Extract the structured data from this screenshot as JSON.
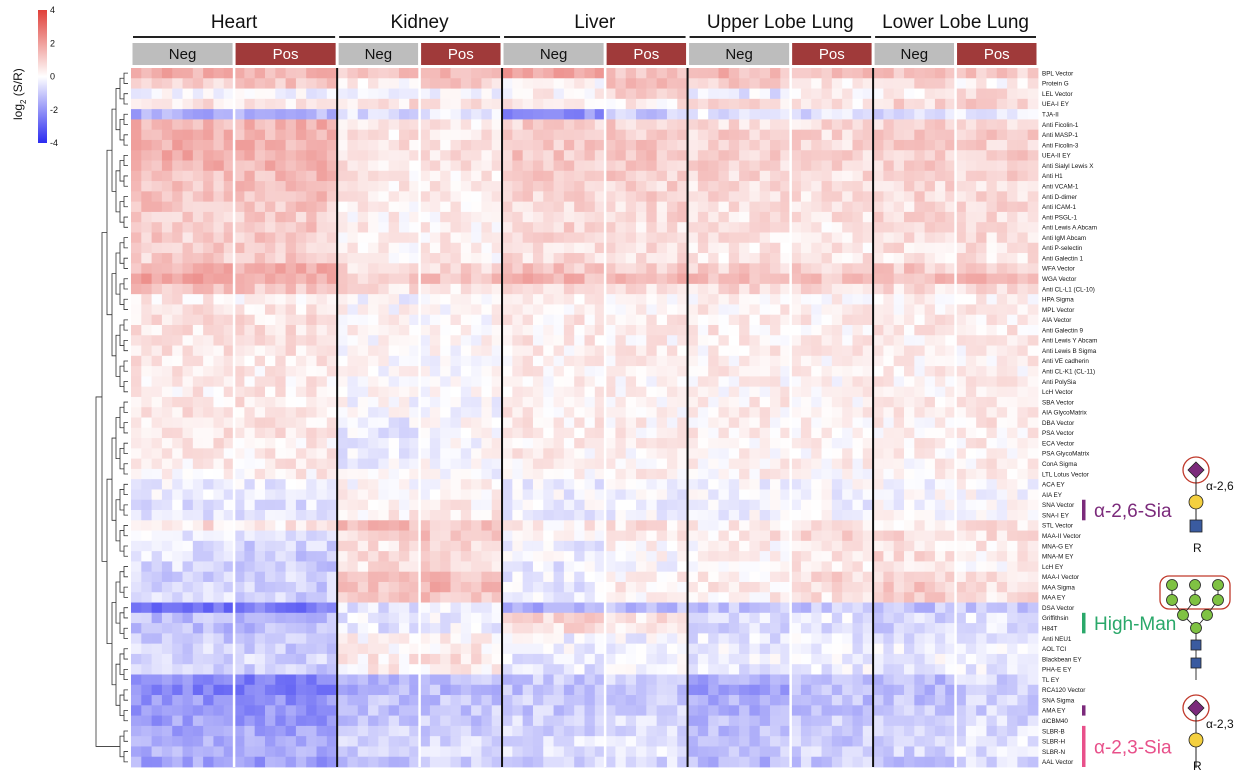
{
  "chart_data": {
    "type": "heatmap",
    "colorbar": {
      "label_main": "log",
      "label_sub": "2",
      "label_rest": " (S/R)",
      "ticks": [
        4,
        2,
        0,
        -2,
        -4
      ],
      "range": [
        -4,
        4
      ],
      "colors": {
        "low": "#2b2bf0",
        "mid": "#ffffff",
        "high": "#e0403a"
      }
    },
    "tissues": [
      "Heart",
      "Kidney",
      "Liver",
      "Upper Lobe Lung",
      "Lower Lobe Lung"
    ],
    "groups": [
      {
        "tissue": "Heart",
        "label": "Neg",
        "samples": 10
      },
      {
        "tissue": "Heart",
        "label": "Pos",
        "samples": 10
      },
      {
        "tissue": "Kidney",
        "label": "Neg",
        "samples": 8
      },
      {
        "tissue": "Kidney",
        "label": "Pos",
        "samples": 8
      },
      {
        "tissue": "Liver",
        "label": "Neg",
        "samples": 10
      },
      {
        "tissue": "Liver",
        "label": "Pos",
        "samples": 8
      },
      {
        "tissue": "Upper Lobe Lung",
        "label": "Neg",
        "samples": 10
      },
      {
        "tissue": "Upper Lobe Lung",
        "label": "Pos",
        "samples": 8
      },
      {
        "tissue": "Lower Lobe Lung",
        "label": "Neg",
        "samples": 8
      },
      {
        "tissue": "Lower Lobe Lung",
        "label": "Pos",
        "samples": 8
      }
    ],
    "group_colors": {
      "Neg": "#bdbdbd",
      "Pos": "#a03a3a"
    },
    "rows": [
      {
        "label": "BPL Vector",
        "v": [
          1.6,
          1.5,
          1.2,
          1.5,
          1.8,
          1.3,
          1.5,
          1.3,
          1.4,
          1.1
        ]
      },
      {
        "label": "Protein G",
        "v": [
          0.8,
          1.2,
          0.3,
          1.0,
          0.1,
          1.5,
          1.0,
          0.5,
          0.9,
          0.2
        ]
      },
      {
        "label": "LEL Vector",
        "v": [
          -0.2,
          -0.1,
          -0.3,
          -0.3,
          0.2,
          0.8,
          -0.4,
          0.2,
          0.2,
          0.8
        ]
      },
      {
        "label": "UEA-I EY",
        "v": [
          0.6,
          0.5,
          0.6,
          0.5,
          0.3,
          0.4,
          0.6,
          0.5,
          0.8,
          0.9
        ]
      },
      {
        "label": "TJA-II",
        "v": [
          -1.5,
          -1.3,
          -0.6,
          -0.4,
          -2.0,
          -1.0,
          -0.5,
          -0.6,
          -0.7,
          -0.6
        ]
      },
      {
        "label": "Anti Ficolin-1",
        "v": [
          1.5,
          1.6,
          0.5,
          0.4,
          1.0,
          1.0,
          0.8,
          0.7,
          0.9,
          0.9
        ]
      },
      {
        "label": "Anti MASP-1",
        "v": [
          1.6,
          1.5,
          0.5,
          0.5,
          1.1,
          1.0,
          0.9,
          0.8,
          1.0,
          1.0
        ]
      },
      {
        "label": "Anti Ficolin-3",
        "v": [
          1.6,
          1.6,
          0.6,
          0.5,
          1.1,
          1.1,
          0.9,
          0.8,
          1.0,
          1.0
        ]
      },
      {
        "label": "UEA-II EY",
        "v": [
          1.8,
          1.7,
          0.6,
          0.6,
          1.2,
          1.2,
          1.0,
          0.9,
          1.1,
          1.1
        ]
      },
      {
        "label": "Anti Sialyl Lewis X",
        "v": [
          1.6,
          1.6,
          0.5,
          0.5,
          1.1,
          1.0,
          0.9,
          0.8,
          1.0,
          1.0
        ]
      },
      {
        "label": "Anti H1",
        "v": [
          1.3,
          1.4,
          0.4,
          0.4,
          1.0,
          1.0,
          0.8,
          0.7,
          0.9,
          0.9
        ]
      },
      {
        "label": "Anti VCAM-1",
        "v": [
          1.3,
          1.3,
          0.4,
          0.4,
          0.9,
          0.9,
          0.7,
          0.7,
          0.8,
          0.8
        ]
      },
      {
        "label": "Anti D-dimer",
        "v": [
          1.2,
          1.3,
          0.3,
          0.4,
          0.9,
          0.9,
          0.7,
          0.6,
          0.8,
          0.8
        ]
      },
      {
        "label": "Anti ICAM-1",
        "v": [
          1.2,
          1.2,
          0.3,
          0.3,
          0.8,
          0.8,
          0.6,
          0.6,
          0.7,
          0.8
        ]
      },
      {
        "label": "Anti PSGL-1",
        "v": [
          1.1,
          1.1,
          0.3,
          0.3,
          0.8,
          0.8,
          0.6,
          0.6,
          0.7,
          0.7
        ]
      },
      {
        "label": "Anti Lewis A Abcam",
        "v": [
          1.1,
          1.1,
          0.3,
          0.3,
          0.8,
          0.7,
          0.6,
          0.5,
          0.7,
          0.7
        ]
      },
      {
        "label": "Anti IgM Abcam",
        "v": [
          1.0,
          1.1,
          0.3,
          0.3,
          0.7,
          0.7,
          0.6,
          0.5,
          0.6,
          0.7
        ]
      },
      {
        "label": "Anti P-selectin",
        "v": [
          1.0,
          1.0,
          0.3,
          0.3,
          0.7,
          0.7,
          0.5,
          0.5,
          0.6,
          0.6
        ]
      },
      {
        "label": "Anti Galectin 1",
        "v": [
          1.0,
          1.0,
          0.3,
          0.3,
          0.7,
          0.7,
          0.5,
          0.5,
          0.6,
          0.6
        ]
      },
      {
        "label": "WFA Vector",
        "v": [
          1.6,
          1.6,
          0.7,
          0.8,
          1.2,
          1.1,
          1.0,
          0.9,
          1.1,
          1.1
        ]
      },
      {
        "label": "WGA Vector",
        "v": [
          1.9,
          1.9,
          1.1,
          1.2,
          1.5,
          1.4,
          1.3,
          1.3,
          1.4,
          1.5
        ]
      },
      {
        "label": "Anti CL-L1 (CL-10)",
        "v": [
          1.2,
          1.2,
          0.7,
          0.6,
          0.8,
          0.7,
          0.7,
          0.6,
          0.7,
          0.8
        ]
      },
      {
        "label": "HPA Sigma",
        "v": [
          0.4,
          0.3,
          -0.1,
          -0.1,
          0.3,
          0.2,
          0.3,
          0.2,
          0.3,
          0.3
        ]
      },
      {
        "label": "MPL Vector",
        "v": [
          0.5,
          0.5,
          0.1,
          0.0,
          0.3,
          0.3,
          0.3,
          0.3,
          0.3,
          0.3
        ]
      },
      {
        "label": "AIA Vector",
        "v": [
          0.6,
          0.6,
          0.2,
          0.1,
          0.4,
          0.4,
          0.4,
          0.3,
          0.4,
          0.4
        ]
      },
      {
        "label": "Anti Galectin 9",
        "v": [
          0.6,
          0.6,
          0.2,
          0.1,
          0.4,
          0.4,
          0.4,
          0.3,
          0.4,
          0.4
        ]
      },
      {
        "label": "Anti Lewis Y Abcam",
        "v": [
          0.5,
          0.5,
          0.1,
          0.1,
          0.4,
          0.3,
          0.3,
          0.3,
          0.3,
          0.4
        ]
      },
      {
        "label": "Anti Lewis B Sigma",
        "v": [
          0.5,
          0.5,
          0.1,
          0.0,
          0.3,
          0.3,
          0.3,
          0.3,
          0.3,
          0.3
        ]
      },
      {
        "label": "Anti VE cadherin",
        "v": [
          0.5,
          0.4,
          0.1,
          0.0,
          0.3,
          0.3,
          0.3,
          0.2,
          0.3,
          0.3
        ]
      },
      {
        "label": "Anti CL-K1 (CL-11)",
        "v": [
          0.4,
          0.4,
          0.0,
          0.0,
          0.3,
          0.3,
          0.3,
          0.2,
          0.3,
          0.3
        ]
      },
      {
        "label": "Anti PolySia",
        "v": [
          0.4,
          0.4,
          0.0,
          0.0,
          0.3,
          0.2,
          0.2,
          0.2,
          0.3,
          0.3
        ]
      },
      {
        "label": "LcH Vector",
        "v": [
          0.4,
          0.4,
          0.0,
          -0.1,
          0.3,
          0.2,
          0.2,
          0.2,
          0.2,
          0.3
        ]
      },
      {
        "label": "SBA Vector",
        "v": [
          0.5,
          0.5,
          0.0,
          0.0,
          0.3,
          0.3,
          0.3,
          0.2,
          0.3,
          0.3
        ]
      },
      {
        "label": "AIA GlycoMatrix",
        "v": [
          0.5,
          0.5,
          0.0,
          0.0,
          0.3,
          0.3,
          0.3,
          0.2,
          0.3,
          0.3
        ]
      },
      {
        "label": "DBA Vector",
        "v": [
          0.6,
          0.5,
          -0.3,
          0.0,
          0.4,
          0.3,
          0.3,
          0.3,
          0.3,
          0.4
        ]
      },
      {
        "label": "PSA Vector",
        "v": [
          0.5,
          0.5,
          -0.4,
          0.0,
          0.3,
          0.3,
          0.3,
          0.2,
          0.3,
          0.3
        ]
      },
      {
        "label": "ECA Vector",
        "v": [
          0.5,
          0.4,
          -0.4,
          0.0,
          0.3,
          0.3,
          0.3,
          0.2,
          0.3,
          0.3
        ]
      },
      {
        "label": "PSA GlycoMatrix",
        "v": [
          0.4,
          0.4,
          -0.4,
          0.0,
          0.3,
          0.2,
          0.2,
          0.2,
          0.2,
          0.3
        ]
      },
      {
        "label": "ConA Sigma",
        "v": [
          0.4,
          0.4,
          -0.3,
          0.0,
          0.2,
          0.2,
          0.2,
          0.2,
          0.2,
          0.3
        ]
      },
      {
        "label": "LTL Lotus Vector",
        "v": [
          0.3,
          0.3,
          -0.2,
          0.0,
          0.2,
          0.2,
          0.2,
          0.2,
          0.2,
          0.2
        ]
      },
      {
        "label": "ACA EY",
        "v": [
          -0.3,
          -0.4,
          0.1,
          0.2,
          -0.3,
          -0.3,
          -0.2,
          -0.1,
          -0.1,
          0.0
        ]
      },
      {
        "label": "AIA EY",
        "v": [
          -0.4,
          -0.5,
          0.2,
          0.2,
          -0.3,
          -0.3,
          -0.2,
          -0.2,
          -0.1,
          0.0
        ]
      },
      {
        "label": "SNA Vector",
        "v": [
          -0.5,
          -0.6,
          0.3,
          0.3,
          -0.3,
          -0.2,
          -0.3,
          -0.2,
          -0.1,
          0.1
        ]
      },
      {
        "label": "SNA-I EY",
        "v": [
          -0.5,
          -0.5,
          0.4,
          0.4,
          -0.3,
          -0.2,
          -0.2,
          -0.1,
          0.0,
          0.1
        ]
      },
      {
        "label": "STL Vector",
        "v": [
          0.6,
          0.5,
          1.3,
          1.1,
          0.4,
          0.6,
          0.3,
          0.4,
          0.5,
          0.6
        ]
      },
      {
        "label": "MAA-II Vector",
        "v": [
          -0.3,
          -0.6,
          0.8,
          1.2,
          -0.1,
          0.6,
          0.5,
          1.0,
          0.7,
          0.6
        ]
      },
      {
        "label": "MNA-G EY",
        "v": [
          -0.5,
          -0.8,
          0.6,
          0.9,
          -0.3,
          0.2,
          0.2,
          0.6,
          0.5,
          0.4
        ]
      },
      {
        "label": "MNA-M EY",
        "v": [
          -0.6,
          -0.9,
          0.7,
          0.8,
          -0.3,
          0.1,
          0.2,
          0.5,
          0.7,
          0.4
        ]
      },
      {
        "label": "LcH EY",
        "v": [
          -0.7,
          -1.0,
          0.6,
          0.8,
          -0.4,
          0.0,
          0.1,
          0.4,
          0.6,
          0.3
        ]
      },
      {
        "label": "MAA-I Vector",
        "v": [
          -0.8,
          -0.8,
          1.3,
          1.4,
          -0.4,
          0.3,
          0.4,
          0.8,
          1.0,
          0.6
        ]
      },
      {
        "label": "MAA Sigma",
        "v": [
          -0.7,
          -0.9,
          1.3,
          1.5,
          -0.4,
          0.3,
          0.4,
          0.8,
          1.1,
          0.7
        ]
      },
      {
        "label": "MAA EY",
        "v": [
          -0.7,
          -0.9,
          1.0,
          1.3,
          -0.4,
          0.2,
          0.3,
          0.6,
          0.9,
          0.6
        ]
      },
      {
        "label": "DSA Vector",
        "v": [
          -2.6,
          -2.5,
          -0.6,
          -0.4,
          -1.5,
          -1.2,
          -1.1,
          -1.0,
          -1.1,
          -1.0
        ]
      },
      {
        "label": "Griffithsin",
        "v": [
          -1.2,
          -1.2,
          -0.4,
          -0.3,
          0.9,
          0.6,
          -0.6,
          -0.5,
          -0.7,
          -0.5
        ]
      },
      {
        "label": "H84T",
        "v": [
          -1.2,
          -1.3,
          -0.5,
          -0.3,
          0.7,
          0.5,
          -0.7,
          -0.6,
          -0.8,
          -0.6
        ]
      },
      {
        "label": "Anti NEU1",
        "v": [
          -1.0,
          -1.1,
          0.2,
          0.2,
          -0.2,
          -0.2,
          -0.5,
          -0.4,
          -0.5,
          -0.4
        ]
      },
      {
        "label": "AOL TCI",
        "v": [
          -0.8,
          -0.9,
          0.3,
          0.4,
          -0.3,
          -0.2,
          -0.4,
          -0.3,
          -0.4,
          -0.3
        ]
      },
      {
        "label": "Blackbean EY",
        "v": [
          -0.7,
          -0.8,
          0.4,
          0.6,
          -0.4,
          -0.3,
          -0.3,
          -0.2,
          -0.3,
          -0.2
        ]
      },
      {
        "label": "PHA-E EY",
        "v": [
          -0.8,
          -0.9,
          0.3,
          0.4,
          -0.5,
          -0.3,
          -0.4,
          -0.3,
          -0.4,
          -0.3
        ]
      },
      {
        "label": "TL EY",
        "v": [
          -2.2,
          -2.4,
          -1.3,
          -1.2,
          -1.0,
          -0.9,
          -1.6,
          -1.2,
          -1.2,
          -0.8
        ]
      },
      {
        "label": "RCA120 Vector",
        "v": [
          -2.3,
          -2.4,
          -1.4,
          -1.3,
          -1.2,
          -1.1,
          -1.7,
          -1.3,
          -1.3,
          -1.0
        ]
      },
      {
        "label": "SNA Sigma",
        "v": [
          -2.0,
          -2.1,
          -1.2,
          -1.1,
          -1.0,
          -1.0,
          -1.5,
          -1.2,
          -1.1,
          -0.9
        ]
      },
      {
        "label": "AMA EY",
        "v": [
          -1.9,
          -2.0,
          -1.1,
          -1.0,
          -1.0,
          -0.9,
          -1.4,
          -1.1,
          -1.1,
          -0.8
        ]
      },
      {
        "label": "diCBM40",
        "v": [
          -1.8,
          -1.9,
          -1.0,
          -1.0,
          -0.8,
          -0.7,
          -1.3,
          -1.0,
          -1.0,
          -0.7
        ]
      },
      {
        "label": "SLBR-B",
        "v": [
          -1.6,
          -1.7,
          -0.9,
          -0.8,
          -0.7,
          -0.6,
          -1.2,
          -0.9,
          -0.9,
          -0.6
        ]
      },
      {
        "label": "SLBR-H",
        "v": [
          -1.6,
          -1.7,
          -0.9,
          -0.8,
          -0.6,
          -0.5,
          -1.2,
          -0.9,
          -0.9,
          -0.5
        ]
      },
      {
        "label": "SLBR-N",
        "v": [
          -1.5,
          -1.6,
          -0.8,
          -0.8,
          -0.6,
          -0.5,
          -1.1,
          -0.8,
          -0.8,
          -0.5
        ]
      },
      {
        "label": "AAL Vector",
        "v": [
          -1.7,
          -1.8,
          -1.0,
          -0.9,
          -0.8,
          -0.7,
          -1.3,
          -1.0,
          -1.0,
          -0.7
        ]
      }
    ],
    "annotations": [
      {
        "label": "α-2,6-Sia",
        "color": "#7b2a7b",
        "linkage": "α-2,6",
        "glycan": "sia26",
        "rows": [
          42,
          43
        ]
      },
      {
        "label": "High-Man",
        "color": "#2aa86a",
        "glycan": "highman",
        "rows": [
          53,
          54
        ]
      },
      {
        "label": "α-2,3-Sia",
        "color": "#e8508a",
        "linkage": "α-2,3",
        "glycan": "sia23",
        "rows": [
          64,
          67
        ],
        "extra_rows": [
          62,
          62
        ],
        "extra_color": "#7b2a7b"
      }
    ],
    "glycan_reducing_end": "R"
  }
}
